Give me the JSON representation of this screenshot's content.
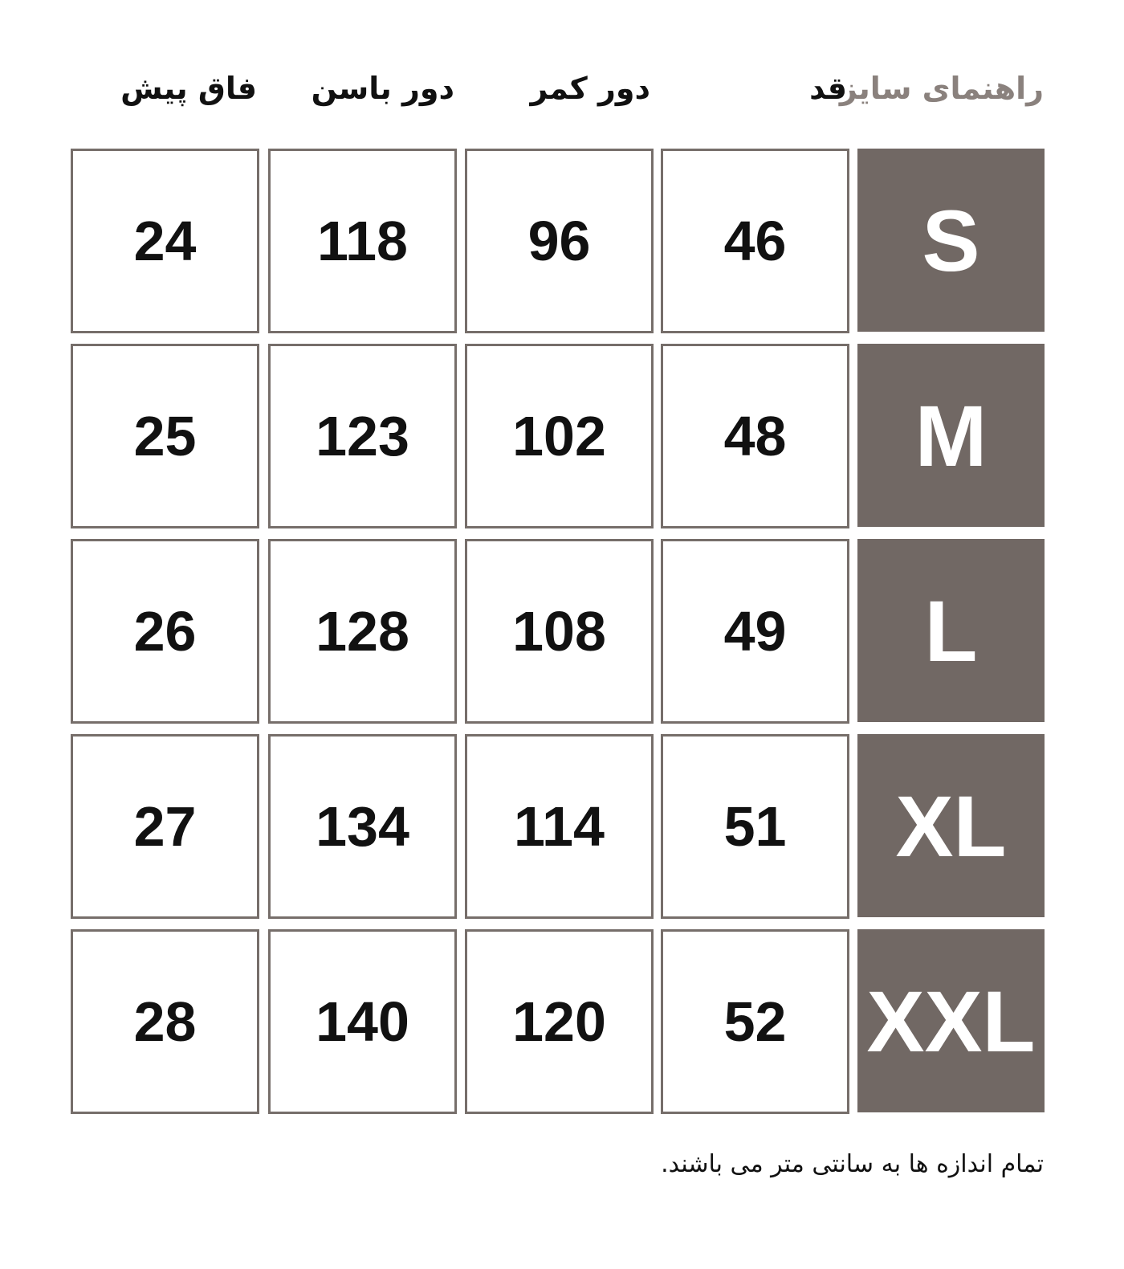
{
  "title": "راهنمای سایز",
  "columns": [
    "قد",
    "دور کمر",
    "دور باسن",
    "فاق پیش"
  ],
  "rows": [
    {
      "size": "S",
      "values": [
        "46",
        "96",
        "118",
        "24"
      ]
    },
    {
      "size": "M",
      "values": [
        "48",
        "102",
        "123",
        "25"
      ]
    },
    {
      "size": "L",
      "values": [
        "49",
        "108",
        "128",
        "26"
      ]
    },
    {
      "size": "XL",
      "values": [
        "51",
        "114",
        "134",
        "27"
      ]
    },
    {
      "size": "XXL",
      "values": [
        "52",
        "120",
        "140",
        "28"
      ]
    }
  ],
  "footnote": "تمام اندازه ها به سانتی متر می باشند.",
  "colors": {
    "size_fill": "#716864",
    "border": "#766e6a",
    "title": "#8a817d"
  }
}
